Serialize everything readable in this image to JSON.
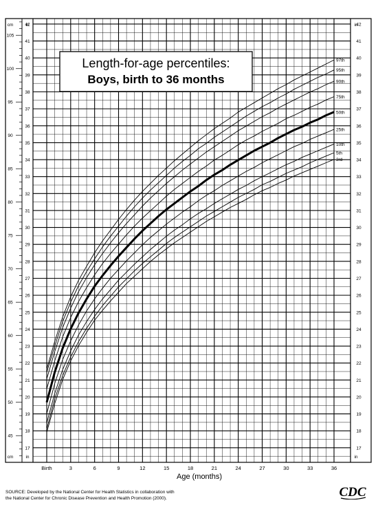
{
  "chart_data": {
    "type": "line",
    "title_line1": "Length-for-age percentiles:",
    "title_line2": "Boys, birth to 36 months",
    "xlabel": "Age (months)",
    "x_ticks": [
      {
        "v": 0,
        "label": "Birth"
      },
      {
        "v": 3,
        "label": "3"
      },
      {
        "v": 6,
        "label": "6"
      },
      {
        "v": 9,
        "label": "9"
      },
      {
        "v": 12,
        "label": "12"
      },
      {
        "v": 15,
        "label": "15"
      },
      {
        "v": 18,
        "label": "18"
      },
      {
        "v": 21,
        "label": "21"
      },
      {
        "v": 24,
        "label": "24"
      },
      {
        "v": 27,
        "label": "27"
      },
      {
        "v": 30,
        "label": "30"
      },
      {
        "v": 33,
        "label": "33"
      },
      {
        "v": 36,
        "label": "36"
      }
    ],
    "xlim": [
      0,
      36
    ],
    "y_cm_ticks": [
      45,
      50,
      55,
      60,
      65,
      70,
      75,
      80,
      85,
      90,
      95,
      100,
      105
    ],
    "y_cm_unit": "cm",
    "y_in_ticks": [
      17,
      18,
      19,
      20,
      21,
      22,
      23,
      24,
      25,
      26,
      27,
      28,
      29,
      30,
      31,
      32,
      33,
      34,
      35,
      36,
      37,
      38,
      39,
      40,
      41,
      42
    ],
    "y_in_unit": "in",
    "ylim_cm": [
      41.0,
      107.5
    ],
    "x": [
      0,
      1,
      2,
      3,
      4,
      5,
      6,
      7,
      8,
      9,
      10,
      11,
      12,
      13,
      14,
      15,
      16,
      17,
      18,
      19,
      20,
      21,
      22,
      23,
      24,
      25,
      26,
      27,
      28,
      29,
      30,
      31,
      32,
      33,
      34,
      35,
      36
    ],
    "series": [
      {
        "name": "97th",
        "label": "97th",
        "values": [
          55.0,
          59.1,
          62.8,
          65.8,
          68.3,
          70.4,
          72.4,
          74.2,
          75.8,
          77.4,
          78.9,
          80.3,
          81.6,
          82.8,
          84.0,
          85.1,
          86.2,
          87.2,
          88.2,
          89.2,
          90.1,
          91.0,
          91.8,
          92.6,
          93.5,
          94.2,
          94.9,
          95.6,
          96.3,
          97.0,
          97.6,
          98.3,
          98.9,
          99.5,
          100.1,
          100.7,
          101.3
        ]
      },
      {
        "name": "95th",
        "label": "95th",
        "values": [
          54.5,
          58.4,
          62.1,
          65.0,
          67.5,
          69.6,
          71.5,
          73.3,
          74.9,
          76.4,
          77.9,
          79.3,
          80.6,
          81.8,
          82.9,
          84.0,
          85.1,
          86.1,
          87.0,
          88.0,
          88.8,
          89.7,
          90.5,
          91.3,
          92.1,
          92.9,
          93.6,
          94.3,
          94.9,
          95.6,
          96.2,
          96.9,
          97.5,
          98.1,
          98.7,
          99.2,
          99.8
        ]
      },
      {
        "name": "90th",
        "label": "90th",
        "values": [
          53.5,
          57.6,
          61.2,
          64.1,
          66.6,
          68.7,
          70.6,
          72.3,
          73.9,
          75.4,
          76.8,
          78.1,
          79.4,
          80.6,
          81.7,
          82.8,
          83.8,
          84.8,
          85.7,
          86.6,
          87.5,
          88.3,
          89.1,
          89.9,
          90.7,
          91.4,
          92.1,
          92.8,
          93.4,
          94.1,
          94.7,
          95.3,
          95.9,
          96.5,
          97.0,
          97.6,
          98.1
        ]
      },
      {
        "name": "75th",
        "label": "75th",
        "values": [
          52.0,
          56.2,
          59.8,
          62.7,
          65.1,
          67.2,
          69.1,
          70.8,
          72.3,
          73.7,
          75.1,
          76.4,
          77.6,
          78.7,
          79.8,
          80.9,
          81.9,
          82.8,
          83.7,
          84.6,
          85.4,
          86.3,
          87.0,
          87.8,
          88.6,
          89.3,
          89.9,
          90.6,
          91.2,
          91.8,
          92.5,
          93.0,
          93.6,
          94.2,
          94.7,
          95.3,
          95.8
        ]
      },
      {
        "name": "50th",
        "label": "50th",
        "values": [
          50.0,
          54.5,
          58.1,
          61.0,
          63.4,
          65.5,
          67.4,
          69.0,
          70.5,
          71.9,
          73.2,
          74.5,
          75.7,
          76.8,
          77.9,
          78.9,
          79.8,
          80.7,
          81.6,
          82.4,
          83.3,
          84.1,
          84.8,
          85.6,
          86.3,
          87.0,
          87.7,
          88.3,
          88.9,
          89.6,
          90.2,
          90.8,
          91.3,
          91.9,
          92.4,
          93.0,
          93.5
        ]
      },
      {
        "name": "25th",
        "label": "25th",
        "values": [
          48.3,
          52.8,
          56.4,
          59.2,
          61.6,
          63.7,
          65.5,
          67.1,
          68.6,
          69.9,
          71.2,
          72.4,
          73.6,
          74.7,
          75.7,
          76.7,
          77.6,
          78.5,
          79.3,
          80.2,
          81.0,
          81.7,
          82.5,
          83.2,
          83.9,
          84.6,
          85.2,
          85.9,
          86.5,
          87.1,
          87.7,
          88.3,
          88.8,
          89.4,
          89.9,
          90.4,
          90.9
        ]
      },
      {
        "name": "10th",
        "label": "10th",
        "values": [
          46.9,
          51.3,
          54.9,
          57.7,
          60.1,
          62.1,
          63.9,
          65.5,
          66.9,
          68.3,
          69.5,
          70.7,
          71.8,
          72.9,
          73.9,
          74.9,
          75.8,
          76.6,
          77.5,
          78.3,
          79.0,
          79.8,
          80.5,
          81.2,
          81.9,
          82.5,
          83.2,
          83.8,
          84.4,
          85.0,
          85.6,
          86.1,
          86.7,
          87.2,
          87.7,
          88.2,
          88.7
        ]
      },
      {
        "name": "5th",
        "label": "5th",
        "values": [
          46.0,
          50.5,
          54.0,
          56.8,
          59.1,
          61.1,
          62.9,
          64.5,
          65.9,
          67.3,
          68.5,
          69.7,
          70.8,
          71.8,
          72.8,
          73.8,
          74.7,
          75.5,
          76.3,
          77.1,
          77.9,
          78.6,
          79.3,
          80.0,
          80.7,
          81.3,
          81.9,
          82.6,
          83.1,
          83.7,
          84.3,
          84.8,
          85.3,
          85.9,
          86.4,
          86.9,
          87.4
        ]
      },
      {
        "name": "3rd",
        "label": "3rd",
        "values": [
          45.5,
          49.8,
          53.4,
          56.2,
          58.5,
          60.5,
          62.3,
          63.8,
          65.2,
          66.5,
          67.8,
          68.9,
          70.0,
          71.1,
          72.1,
          73.0,
          73.9,
          74.7,
          75.5,
          76.3,
          77.1,
          77.8,
          78.5,
          79.2,
          79.8,
          80.4,
          81.1,
          81.7,
          82.2,
          82.8,
          83.3,
          83.9,
          84.4,
          84.9,
          85.4,
          85.9,
          86.4
        ]
      }
    ],
    "legend": "right end labels",
    "grid": true
  },
  "source_line1": "SOURCE: Developed by the National Center for Health Statistics in collaboration with",
  "source_line2": "the National Center for Chronic Disease Prevention and Health Promotion (2000).",
  "logo_text": "CDC"
}
